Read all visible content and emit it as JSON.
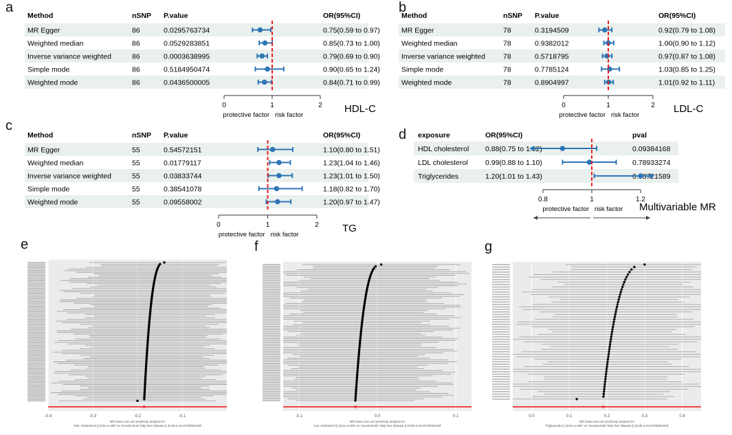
{
  "panels": {
    "a": {
      "letter": "a",
      "tag": "HDL-C"
    },
    "b": {
      "letter": "b",
      "tag": "LDL-C"
    },
    "c": {
      "letter": "c",
      "tag": "TG"
    },
    "d": {
      "letter": "d",
      "tag": "Multivariable MR"
    },
    "e": {
      "letter": "e"
    },
    "f": {
      "letter": "f"
    },
    "g": {
      "letter": "g"
    }
  },
  "chart_data": [
    {
      "id": "a",
      "type": "forest",
      "columns": [
        "Method",
        "nSNP",
        "P.value",
        "OR(95%CI)"
      ],
      "rows": [
        {
          "method": "MR Egger",
          "nsnp": "86",
          "p": "0.0295763734",
          "or_text": "0.75(0.59 to 0.97)",
          "or": 0.75,
          "lo": 0.59,
          "hi": 0.97
        },
        {
          "method": "Weighted median",
          "nsnp": "86",
          "p": "0.0529283851",
          "or_text": "0.85(0.73 to 1.00)",
          "or": 0.85,
          "lo": 0.73,
          "hi": 1.0
        },
        {
          "method": "Inverse variance weighted",
          "nsnp": "86",
          "p": "0.0003638995",
          "or_text": "0.79(0.69 to 0.90)",
          "or": 0.79,
          "lo": 0.69,
          "hi": 0.9
        },
        {
          "method": "Simple mode",
          "nsnp": "86",
          "p": "0.5184950474",
          "or_text": "0.90(0.65 to 1.24)",
          "or": 0.9,
          "lo": 0.65,
          "hi": 1.24
        },
        {
          "method": "Weighted mode",
          "nsnp": "86",
          "p": "0.0436500005",
          "or_text": "0.84(0.71 to 0.99)",
          "or": 0.84,
          "lo": 0.71,
          "hi": 0.99
        }
      ],
      "axis": {
        "min": 0,
        "max": 2,
        "ticks": [
          "0",
          "1",
          "2"
        ]
      },
      "ref": 1,
      "left_label": "protective factor",
      "right_label": "risk factor"
    },
    {
      "id": "b",
      "type": "forest",
      "columns": [
        "Method",
        "nSNP",
        "P.value",
        "OR(95%CI)"
      ],
      "rows": [
        {
          "method": "MR Egger",
          "nsnp": "78",
          "p": "0.3194509",
          "or_text": "0.92(0.79 to 1.08)",
          "or": 0.92,
          "lo": 0.79,
          "hi": 1.08
        },
        {
          "method": "Weighted median",
          "nsnp": "78",
          "p": "0.9382012",
          "or_text": "1.00(0.90 to 1.12)",
          "or": 1.0,
          "lo": 0.9,
          "hi": 1.12
        },
        {
          "method": "Inverse variance weighted",
          "nsnp": "78",
          "p": "0.5718795",
          "or_text": "0.97(0.87 to 1.08)",
          "or": 0.97,
          "lo": 0.87,
          "hi": 1.08
        },
        {
          "method": "Simple mode",
          "nsnp": "78",
          "p": "0.7785124",
          "or_text": "1.03(0.85 to 1.25)",
          "or": 1.03,
          "lo": 0.85,
          "hi": 1.25
        },
        {
          "method": "Weighted mode",
          "nsnp": "78",
          "p": "0.8904997",
          "or_text": "1.01(0.92 to 1.11)",
          "or": 1.01,
          "lo": 0.92,
          "hi": 1.11
        }
      ],
      "axis": {
        "min": 0,
        "max": 2,
        "ticks": [
          "0",
          "1",
          "2"
        ]
      },
      "ref": 1,
      "left_label": "protective factor",
      "right_label": "risk factor"
    },
    {
      "id": "c",
      "type": "forest",
      "columns": [
        "Method",
        "nSNP",
        "P.value",
        "OR(95%CI)"
      ],
      "rows": [
        {
          "method": "MR Egger",
          "nsnp": "55",
          "p": "0.54572151",
          "or_text": "1.10(0.80 to 1.51)",
          "or": 1.1,
          "lo": 0.8,
          "hi": 1.51
        },
        {
          "method": "Weighted median",
          "nsnp": "55",
          "p": "0.01779117",
          "or_text": "1.23(1.04 to 1.46)",
          "or": 1.23,
          "lo": 1.04,
          "hi": 1.46
        },
        {
          "method": "Inverse variance weighted",
          "nsnp": "55",
          "p": "0.03833744",
          "or_text": "1.23(1.01 to 1.50)",
          "or": 1.23,
          "lo": 1.01,
          "hi": 1.5
        },
        {
          "method": "Simple mode",
          "nsnp": "55",
          "p": "0.38541078",
          "or_text": "1.18(0.82 to 1.70)",
          "or": 1.18,
          "lo": 0.82,
          "hi": 1.7
        },
        {
          "method": "Weighted mode",
          "nsnp": "55",
          "p": "0.09558002",
          "or_text": "1.20(0.97 to 1.47)",
          "or": 1.2,
          "lo": 0.97,
          "hi": 1.47
        }
      ],
      "axis": {
        "min": 0,
        "max": 2,
        "ticks": [
          "0",
          "1",
          "2"
        ]
      },
      "ref": 1,
      "left_label": "protective factor",
      "right_label": "risk factor"
    },
    {
      "id": "d",
      "type": "forest",
      "columns": [
        "exposure",
        "OR(95%CI)",
        "pval"
      ],
      "rows": [
        {
          "method": "HDL cholesterol",
          "or_text": "0.88(0.75 to 1.02)",
          "p": "0.09384168",
          "or": 0.88,
          "lo": 0.75,
          "hi": 1.02,
          "arrow_left": true
        },
        {
          "method": "LDL cholesterol",
          "or_text": "0.99(0.88 to 1.10)",
          "p": "0.78933274",
          "or": 0.99,
          "lo": 0.88,
          "hi": 1.1
        },
        {
          "method": "Triglycerides",
          "or_text": "1.20(1.01 to 1.43)",
          "p": "0.03721589",
          "or": 1.2,
          "lo": 1.01,
          "hi": 1.43,
          "arrow_right": true
        }
      ],
      "axis": {
        "min": 0.8,
        "max": 1.2,
        "ticks": [
          "0.8",
          "1",
          "1.2"
        ]
      },
      "ref": 1,
      "left_label": "protective factor",
      "right_label": "risk factor"
    },
    {
      "id": "e",
      "type": "scatter",
      "series_count": 86,
      "axis": {
        "min": -0.4,
        "max": 0.0,
        "ticks": [
          "-0.4",
          "-0.3",
          "-0.2",
          "-0.1"
        ]
      },
      "x_start": -0.14,
      "x_end": -0.185,
      "x_last": -0.2,
      "xlabel": "MR leave-one-out sensitivity analysis for\n'HDL cholesterol || id:ieu-a-299' on 'Nonalcoholic fatty liver disease || id:ebi-a-GCST90091033'"
    },
    {
      "id": "f",
      "type": "scatter",
      "series_count": 78,
      "axis": {
        "min": -0.12,
        "max": 0.12,
        "ticks": [
          "-0.1",
          "0.0",
          "0.1"
        ]
      },
      "x_start": 0.005,
      "x_end": -0.028,
      "x_last": -0.028,
      "xlabel": "MR leave-one-out sensitivity analysis for\n'LDL cholesterol || id:ieu-a-300' on 'Nonalcoholic fatty liver disease || id:ebi-a-GCST90091033'"
    },
    {
      "id": "g",
      "type": "scatter",
      "series_count": 55,
      "axis": {
        "min": -0.05,
        "max": 0.45,
        "ticks": [
          "0.0",
          "0.1",
          "0.2",
          "0.3",
          "0.4"
        ]
      },
      "x_start": 0.3,
      "x_end": 0.19,
      "x_last": 0.12,
      "xlabel": "MR leave-one-out sensitivity analysis for\n'Triglycerides || id:ieu-a-302' on 'Nonalcoholic fatty liver disease || id:ebi-a-GCST90091033'"
    }
  ]
}
